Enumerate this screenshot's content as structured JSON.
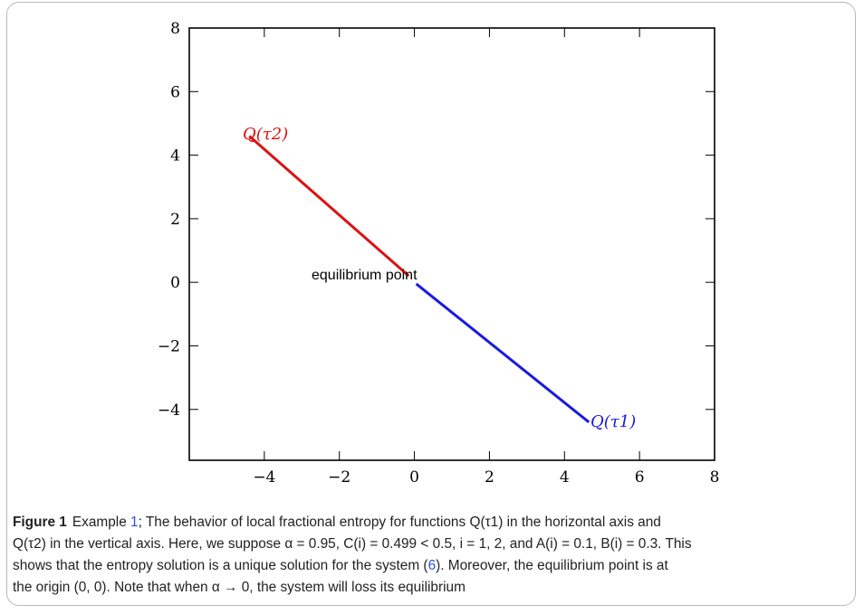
{
  "chart_data": {
    "type": "line",
    "xlim": [
      -6,
      8
    ],
    "ylim": [
      -5.6,
      8
    ],
    "xticks": [
      -4,
      -2,
      0,
      2,
      4,
      6,
      8
    ],
    "yticks": [
      -4,
      -2,
      0,
      2,
      4,
      6,
      8
    ],
    "x_tick_labels": [
      "−4",
      "−2",
      "0",
      "2",
      "4",
      "6",
      "8"
    ],
    "y_tick_labels": [
      "−4",
      "−2",
      "0",
      "2",
      "4",
      "6",
      "8"
    ],
    "grid": false,
    "series": [
      {
        "name": "Q(τ2)",
        "color": "#dd1111",
        "points": [
          [
            -4.4,
            4.6
          ],
          [
            -0.15,
            0.2
          ]
        ]
      },
      {
        "name": "Q(τ1)",
        "color": "#1a1ae0",
        "points": [
          [
            0.05,
            -0.05
          ],
          [
            4.65,
            -4.4
          ]
        ]
      }
    ],
    "annotations": {
      "q2_label": "Q(τ2)",
      "q1_label": "Q(τ1)",
      "equilibrium": "equilibrium point"
    }
  },
  "caption": {
    "label": "Figure 1",
    "line1_a": "Example ",
    "ref1": "1",
    "line1_b": "; The behavior of local fractional entropy for functions Q(τ1) in the horizontal axis and",
    "line2": "Q(τ2) in the vertical axis. Here, we suppose α = 0.95, C(i) = 0.499 < 0.5, i = 1, 2, and A(i) = 0.1, B(i) = 0.3. This",
    "line3_a": "shows that the entropy solution is a unique solution for the system (",
    "ref2": "6",
    "line3_b": "). Moreover, the equilibrium point is at",
    "line4": "the origin (0, 0). Note that when α → 0, the system will loss its equilibrium"
  }
}
